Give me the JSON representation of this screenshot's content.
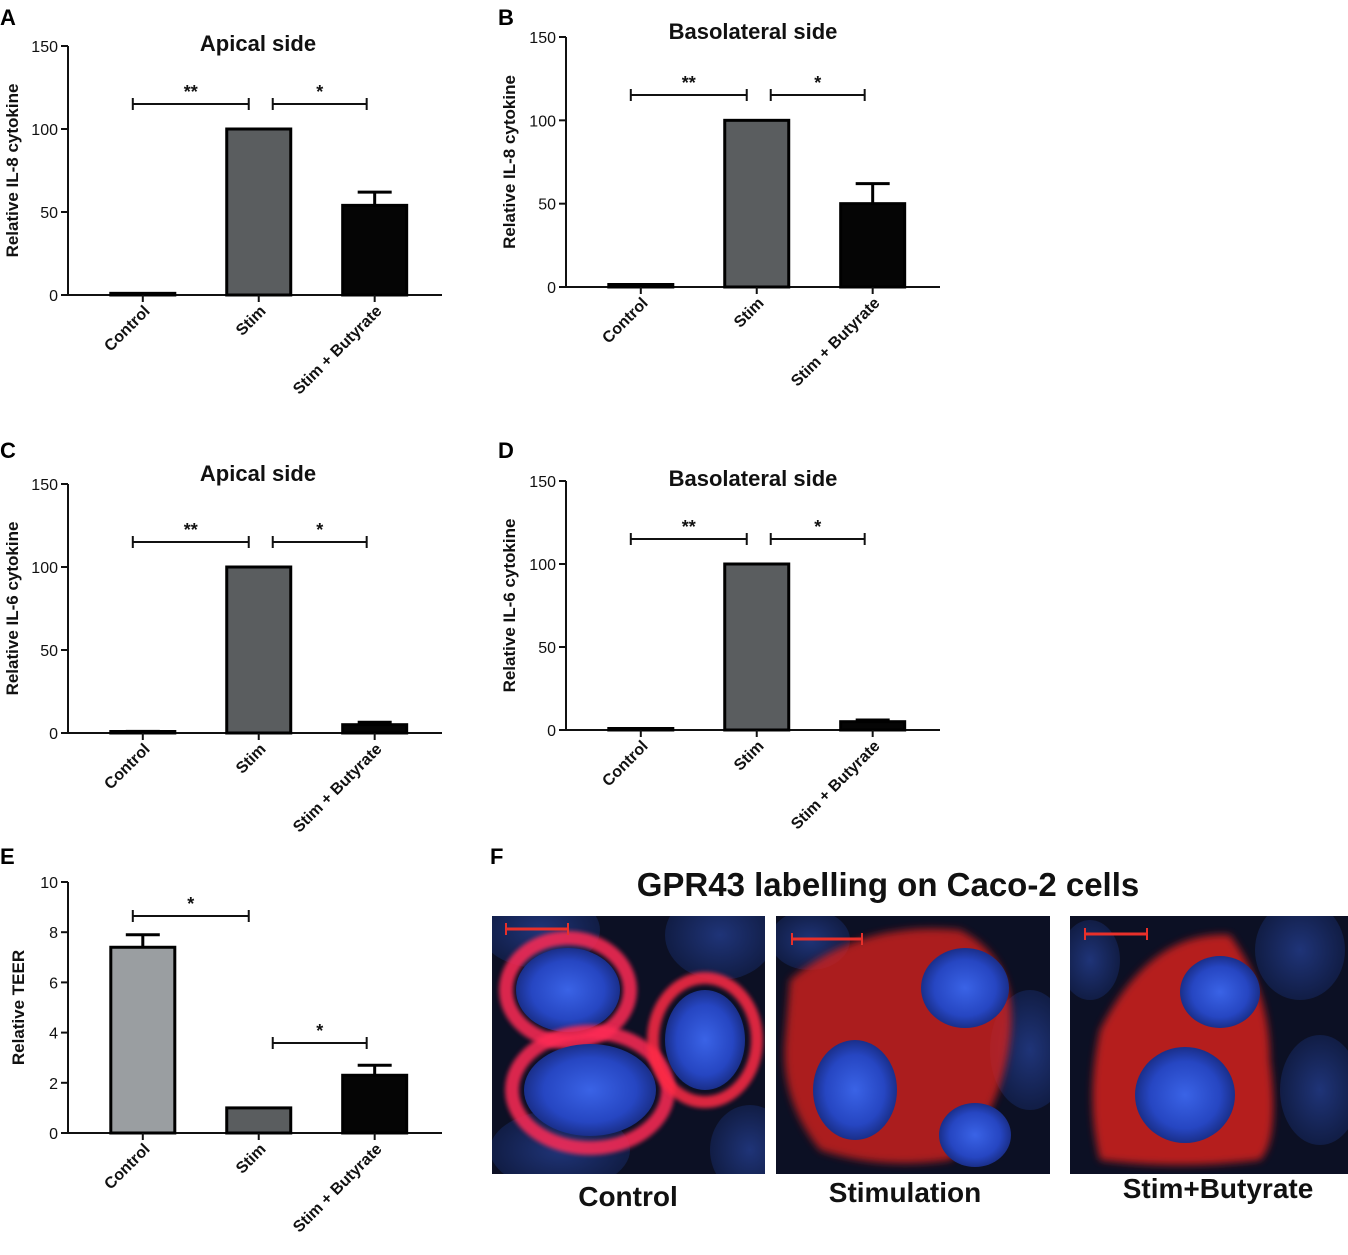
{
  "panel_letters": [
    "A",
    "B",
    "C",
    "D",
    "E",
    "F"
  ],
  "chart_data": [
    {
      "panel": "A",
      "type": "bar",
      "title": "Apical side",
      "ylabel": "Relative IL-8 cytokine",
      "categories": [
        "Control",
        "Stim",
        "Stim + Butyrate"
      ],
      "values": [
        1,
        100,
        54
      ],
      "errors": [
        0,
        0,
        8
      ],
      "colors": [
        "#7f8487",
        "#5a5d5f",
        "#050505"
      ],
      "ylim": [
        0,
        150
      ],
      "yticks": [
        "0",
        "50",
        "100",
        "150"
      ],
      "significance": [
        {
          "from": 0,
          "to": 1,
          "label": "**"
        },
        {
          "from": 1,
          "to": 2,
          "label": "*"
        }
      ]
    },
    {
      "panel": "B",
      "type": "bar",
      "title": "Basolateral side",
      "ylabel": "Relative IL-8 cytokine",
      "categories": [
        "Control",
        "Stim",
        "Stim + Butyrate"
      ],
      "values": [
        1.5,
        100,
        50
      ],
      "errors": [
        0,
        0,
        12
      ],
      "colors": [
        "#7f8487",
        "#5a5d5f",
        "#050505"
      ],
      "ylim": [
        0,
        150
      ],
      "yticks": [
        "0",
        "50",
        "100",
        "150"
      ],
      "significance": [
        {
          "from": 0,
          "to": 1,
          "label": "**"
        },
        {
          "from": 1,
          "to": 2,
          "label": "*"
        }
      ]
    },
    {
      "panel": "C",
      "type": "bar",
      "title": "Apical side",
      "ylabel": "Relative IL-6 cytokine",
      "categories": [
        "Control",
        "Stim",
        "Stim + Butyrate"
      ],
      "values": [
        0.5,
        100,
        5
      ],
      "errors": [
        0.5,
        0,
        1.5
      ],
      "colors": [
        "#7f8487",
        "#5a5d5f",
        "#050505"
      ],
      "ylim": [
        0,
        150
      ],
      "yticks": [
        "0",
        "50",
        "100",
        "150"
      ],
      "significance": [
        {
          "from": 0,
          "to": 1,
          "label": "**"
        },
        {
          "from": 1,
          "to": 2,
          "label": "*"
        }
      ]
    },
    {
      "panel": "D",
      "type": "bar",
      "title": "Basolateral side",
      "ylabel": "Relative IL-6 cytokine",
      "categories": [
        "Control",
        "Stim",
        "Stim + Butyrate"
      ],
      "values": [
        0.3,
        100,
        5
      ],
      "errors": [
        0,
        0,
        1
      ],
      "colors": [
        "#7f8487",
        "#5a5d5f",
        "#050505"
      ],
      "ylim": [
        0,
        150
      ],
      "yticks": [
        "0",
        "50",
        "100",
        "150"
      ],
      "significance": [
        {
          "from": 0,
          "to": 1,
          "label": "**"
        },
        {
          "from": 1,
          "to": 2,
          "label": "*"
        }
      ]
    },
    {
      "panel": "E",
      "type": "bar",
      "title": "",
      "ylabel": "Relative TEER",
      "categories": [
        "Control",
        "Stim",
        "Stim + Butyrate"
      ],
      "values": [
        7.4,
        1,
        2.3
      ],
      "errors": [
        0.5,
        0,
        0.4
      ],
      "colors": [
        "#9a9ea1",
        "#5a5d5f",
        "#050505"
      ],
      "ylim": [
        0,
        10
      ],
      "yticks": [
        "0",
        "2",
        "4",
        "6",
        "8",
        "10"
      ],
      "significance": [
        {
          "from": 0,
          "to": 1,
          "label": "*"
        },
        {
          "from": 1,
          "to": 2,
          "label": "*"
        }
      ]
    }
  ],
  "microscopy": {
    "title": "GPR43 labelling on Caco-2 cells",
    "images": [
      {
        "caption": "Control",
        "description": "fluorescence micrograph"
      },
      {
        "caption": "Stimulation",
        "description": "fluorescence micrograph"
      },
      {
        "caption": "Stim+Butyrate",
        "description": "fluorescence micrograph"
      }
    ],
    "nucleus_color": "#2a4fd0",
    "label_color": "#ff2a2a",
    "scale_bar_color": "#e8302a"
  }
}
